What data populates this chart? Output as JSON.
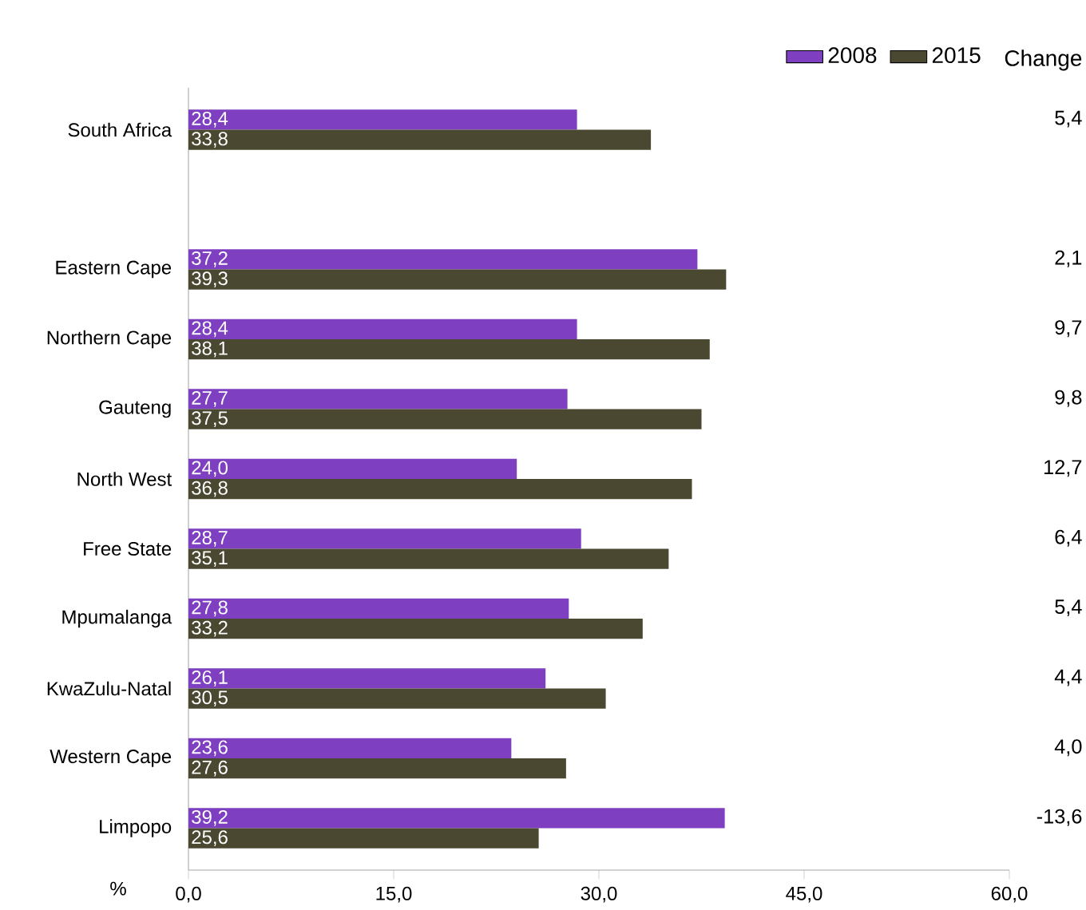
{
  "chart_data": {
    "type": "bar",
    "orientation": "horizontal",
    "xlabel": "%",
    "legend": "top right",
    "categories": [
      "South Africa",
      null,
      "Eastern Cape",
      "Northern Cape",
      "Gauteng",
      "North West",
      "Free State",
      "Mpumalanga",
      "KwaZulu-Natal",
      "Western Cape",
      "Limpopo"
    ],
    "series": [
      {
        "name": "2008",
        "color": "#7e3fc0",
        "values": [
          28.4,
          null,
          37.2,
          28.4,
          27.7,
          24.0,
          28.7,
          27.8,
          26.1,
          23.6,
          39.2
        ],
        "value_labels": [
          "28,4",
          null,
          "37,2",
          "28,4",
          "27,7",
          "24,0",
          "28,7",
          "27,8",
          "26,1",
          "23,6",
          "39,2"
        ]
      },
      {
        "name": "2015",
        "color": "#4b4832",
        "values": [
          33.8,
          null,
          39.3,
          38.1,
          37.5,
          36.8,
          35.1,
          33.2,
          30.5,
          27.6,
          25.6
        ],
        "value_labels": [
          "33,8",
          null,
          "39,3",
          "38,1",
          "37,5",
          "36,8",
          "35,1",
          "33,2",
          "30,5",
          "27,6",
          "25,6"
        ]
      }
    ],
    "xlim": [
      0,
      60
    ],
    "xticks": [
      {
        "value": 0,
        "label": "0,0"
      },
      {
        "value": 15,
        "label": "15,0"
      },
      {
        "value": 30,
        "label": "30,0"
      },
      {
        "value": 45,
        "label": "45,0"
      },
      {
        "value": 60,
        "label": "60,0"
      }
    ],
    "annotations": [
      "Change",
      "5,4",
      "2,1",
      "9,7",
      "9,8",
      "12,7",
      "6,4",
      "5,4",
      "4,4",
      "4,0",
      "-13,6"
    ]
  }
}
